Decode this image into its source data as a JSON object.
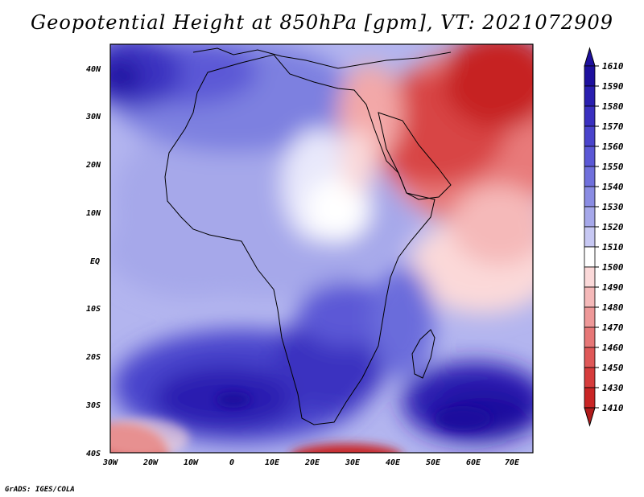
{
  "title": "Geopotential Height at 850hPa [gpm], VT: 2021072909",
  "footer": "GrADS: IGES/COLA",
  "map": {
    "lat_labels": [
      "40N",
      "30N",
      "20N",
      "10N",
      "EQ",
      "10S",
      "20S",
      "30S",
      "40S"
    ],
    "lon_labels": [
      "30W",
      "20W",
      "10W",
      "0",
      "10E",
      "20E",
      "30E",
      "40E",
      "50E",
      "60E",
      "70E"
    ]
  },
  "colorbar": {
    "levels": [
      "1610",
      "1590",
      "1580",
      "1570",
      "1560",
      "1550",
      "1540",
      "1530",
      "1520",
      "1510",
      "1500",
      "1490",
      "1480",
      "1470",
      "1460",
      "1450",
      "1430",
      "1410"
    ],
    "colors": [
      "#1e109e",
      "#2a1fb0",
      "#3a30c0",
      "#4a44cc",
      "#5b58d6",
      "#7070dc",
      "#8a8ce3",
      "#a6a8ea",
      "#c7c8f3",
      "#ffffff",
      "#fbd9d9",
      "#f5b9b9",
      "#ee9898",
      "#e77777",
      "#df5858",
      "#d63c3c",
      "#c92525",
      "#b01b1b"
    ]
  }
}
